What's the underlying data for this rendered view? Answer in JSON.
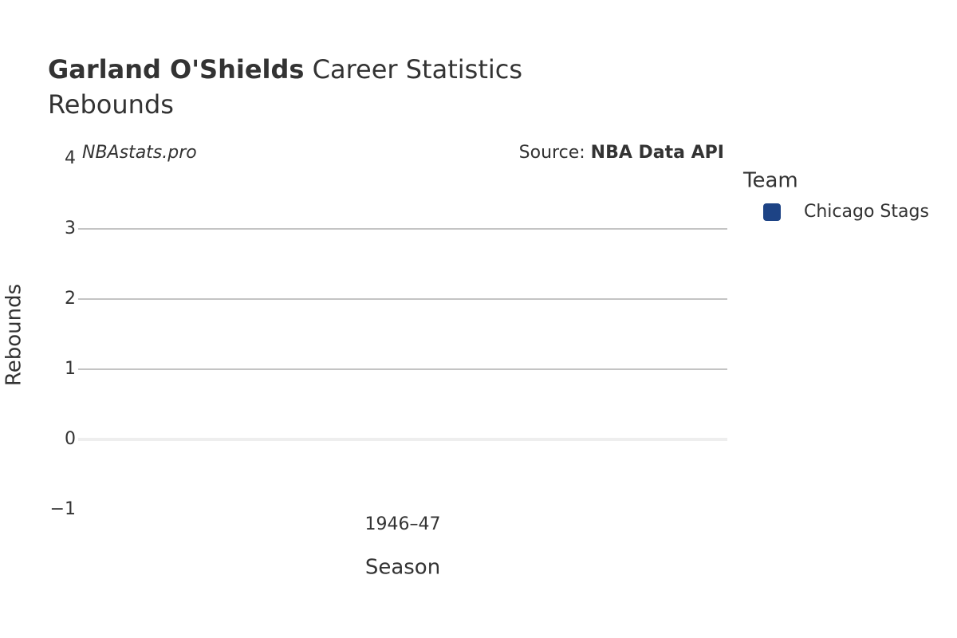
{
  "chart_data": {
    "type": "bar",
    "title": "Garland O'Shields",
    "title_rest": "Career Statistics",
    "subtitle": "Rebounds",
    "watermark": "NBAstats.pro",
    "source_label": "Source:",
    "source": "NBA Data API",
    "x_label": "Season",
    "y_label": "Rebounds",
    "categories": [
      "1946–47"
    ],
    "series": [
      {
        "name": "Chicago Stags",
        "color": "#1d4385",
        "values": [
          0
        ]
      }
    ],
    "legend_title": "Team",
    "ylim": [
      -1,
      4
    ],
    "yticks": [
      {
        "value": -1,
        "label": "−1"
      },
      0,
      1,
      2,
      3,
      4
    ],
    "grid": true
  }
}
